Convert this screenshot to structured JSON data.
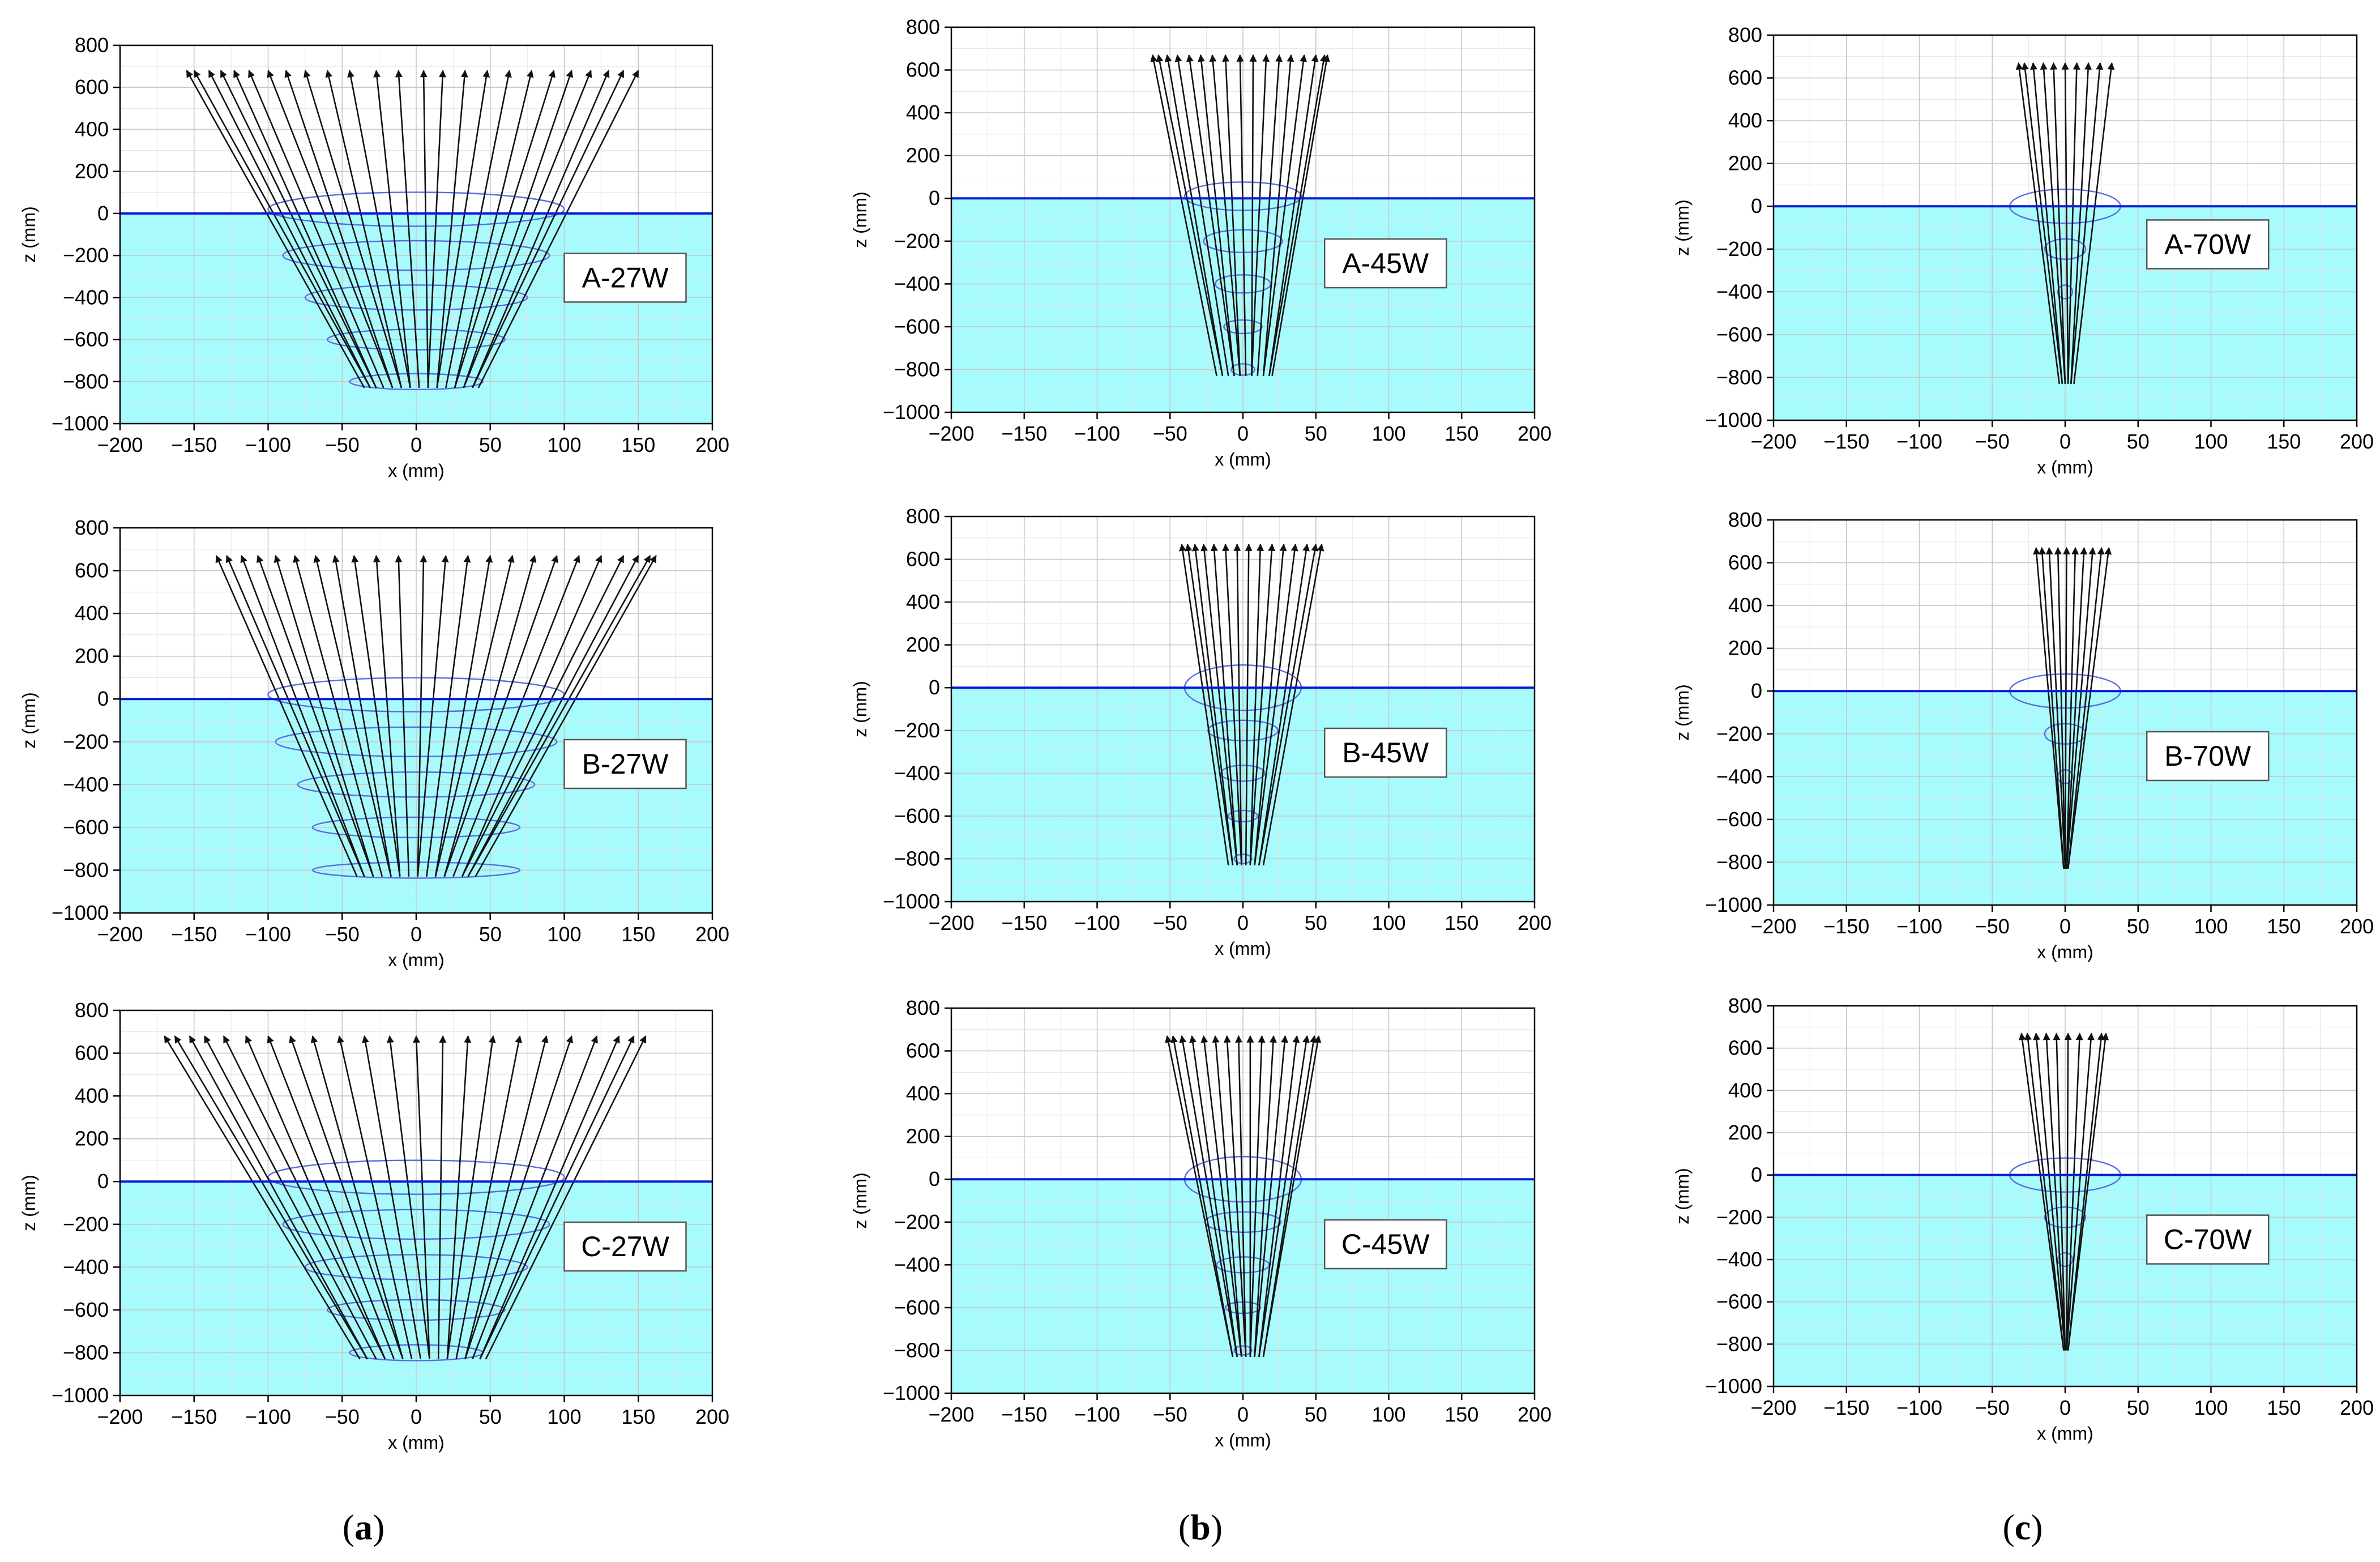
{
  "figure": {
    "captions": [
      {
        "letter": "a"
      },
      {
        "letter": "b"
      },
      {
        "letter": "c"
      }
    ]
  },
  "colors": {
    "water": "#a8fbfc",
    "surface_line": "#0b1ad6",
    "ellipse": "#5b6be0",
    "ray": "#111111",
    "grid": "#c8c8c8",
    "grid_minor": "#e4e4e4"
  },
  "chart_data": [
    {
      "type": "line",
      "label": "A-27W",
      "xlabel": "x (mm)",
      "ylabel": "z (mm)",
      "xlim": [
        -200,
        200
      ],
      "ylim": [
        -1000,
        800
      ],
      "xticks": [
        "−200",
        "−150",
        "−100",
        "−50",
        "0",
        "50",
        "100",
        "150",
        "200"
      ],
      "yticks": [
        "−1000",
        "−800",
        "−600",
        "−400",
        "−200",
        "0",
        "200",
        "400",
        "600",
        "800"
      ],
      "surface_z": 0,
      "top_z": 680,
      "bottom_z": -830,
      "top_x": [
        -155,
        -150,
        -140,
        -132,
        -123,
        -113,
        -100,
        -88,
        -75,
        -60,
        -45,
        -27,
        -12,
        5,
        18,
        33,
        48,
        63,
        78,
        93,
        105,
        118,
        130,
        140,
        150
      ],
      "bottom_x": [
        -35,
        -31,
        -27,
        -22,
        -16,
        -10,
        -4,
        2,
        8,
        14,
        20,
        26,
        32,
        38,
        42
      ],
      "ellipses": [
        {
          "z": 20,
          "w": 100,
          "h": 30
        },
        {
          "z": -200,
          "w": 90,
          "h": 26
        },
        {
          "z": -400,
          "w": 75,
          "h": 22
        },
        {
          "z": -600,
          "w": 60,
          "h": 18
        },
        {
          "z": -800,
          "w": 45,
          "h": 14
        }
      ]
    },
    {
      "type": "line",
      "label": "A-45W",
      "xlabel": "x (mm)",
      "ylabel": "z (mm)",
      "xlim": [
        -200,
        200
      ],
      "ylim": [
        -1000,
        800
      ],
      "xticks": [
        "−200",
        "−150",
        "−100",
        "−50",
        "0",
        "50",
        "100",
        "150",
        "200"
      ],
      "yticks": [
        "−1000",
        "−800",
        "−600",
        "−400",
        "−200",
        "0",
        "200",
        "400",
        "600",
        "800"
      ],
      "surface_z": 0,
      "top_z": 670,
      "bottom_z": -830,
      "top_x": [
        -62,
        -58,
        -52,
        -45,
        -37,
        -29,
        -21,
        -12,
        -2,
        7,
        16,
        25,
        33,
        42,
        50,
        56,
        58
      ],
      "bottom_x": [
        -18,
        -14,
        -10,
        -6,
        -2,
        2,
        6,
        10,
        14,
        18,
        20
      ],
      "ellipses": [
        {
          "z": 10,
          "w": 40,
          "h": 25
        },
        {
          "z": -200,
          "w": 27,
          "h": 20
        },
        {
          "z": -400,
          "w": 19,
          "h": 16
        },
        {
          "z": -600,
          "w": 13,
          "h": 12
        },
        {
          "z": -800,
          "w": 8,
          "h": 10
        }
      ]
    },
    {
      "type": "line",
      "label": "A-70W",
      "xlabel": "x (mm)",
      "ylabel": "z (mm)",
      "xlim": [
        -200,
        200
      ],
      "ylim": [
        -1000,
        800
      ],
      "xticks": [
        "−200",
        "−150",
        "−100",
        "−50",
        "0",
        "50",
        "100",
        "150",
        "200"
      ],
      "yticks": [
        "−1000",
        "−800",
        "−600",
        "−400",
        "−200",
        "0",
        "200",
        "400",
        "600",
        "800"
      ],
      "surface_z": 0,
      "top_z": 670,
      "bottom_z": -830,
      "top_x": [
        -32,
        -28,
        -22,
        -15,
        -8,
        0,
        8,
        16,
        24,
        32
      ],
      "bottom_x": [
        -4,
        -2,
        0,
        2,
        4,
        6
      ],
      "ellipses": [
        {
          "z": 0,
          "w": 38,
          "h": 30
        },
        {
          "z": -200,
          "w": 14,
          "h": 18
        },
        {
          "z": -400,
          "w": 5,
          "h": 12
        }
      ]
    },
    {
      "type": "line",
      "label": "B-27W",
      "xlabel": "x (mm)",
      "ylabel": "z (mm)",
      "xlim": [
        -200,
        200
      ],
      "ylim": [
        -1000,
        800
      ],
      "xticks": [
        "−200",
        "−150",
        "−100",
        "−50",
        "0",
        "50",
        "100",
        "150",
        "200"
      ],
      "yticks": [
        "−1000",
        "−800",
        "−600",
        "−400",
        "−200",
        "0",
        "200",
        "400",
        "600",
        "800"
      ],
      "surface_z": 0,
      "top_z": 670,
      "bottom_z": -830,
      "top_x": [
        -135,
        -128,
        -118,
        -107,
        -95,
        -82,
        -68,
        -55,
        -42,
        -27,
        -12,
        5,
        20,
        35,
        50,
        65,
        80,
        95,
        110,
        125,
        140,
        150,
        158,
        162
      ],
      "bottom_x": [
        -40,
        -35,
        -29,
        -23,
        -17,
        -11,
        -5,
        1,
        7,
        13,
        19,
        25,
        31,
        35,
        40
      ],
      "ellipses": [
        {
          "z": 20,
          "w": 100,
          "h": 30
        },
        {
          "z": -200,
          "w": 95,
          "h": 26
        },
        {
          "z": -400,
          "w": 80,
          "h": 22
        },
        {
          "z": -600,
          "w": 70,
          "h": 18
        },
        {
          "z": -800,
          "w": 70,
          "h": 14
        }
      ]
    },
    {
      "type": "line",
      "label": "B-45W",
      "xlabel": "x (mm)",
      "ylabel": "z (mm)",
      "xlim": [
        -200,
        200
      ],
      "ylim": [
        -1000,
        800
      ],
      "xticks": [
        "−200",
        "−150",
        "−100",
        "−50",
        "0",
        "50",
        "100",
        "150",
        "200"
      ],
      "yticks": [
        "−1000",
        "−800",
        "−600",
        "−400",
        "−200",
        "0",
        "200",
        "400",
        "600",
        "800"
      ],
      "surface_z": 0,
      "top_z": 670,
      "bottom_z": -830,
      "top_x": [
        -42,
        -38,
        -33,
        -27,
        -20,
        -12,
        -4,
        4,
        12,
        20,
        28,
        36,
        44,
        50,
        54
      ],
      "bottom_x": [
        -10,
        -7,
        -4,
        -1,
        2,
        5,
        8,
        11,
        14
      ],
      "ellipses": [
        {
          "z": 0,
          "w": 40,
          "h": 40
        },
        {
          "z": -200,
          "w": 24,
          "h": 18
        },
        {
          "z": -400,
          "w": 15,
          "h": 14
        },
        {
          "z": -600,
          "w": 10,
          "h": 10
        },
        {
          "z": -800,
          "w": 6,
          "h": 8
        }
      ]
    },
    {
      "type": "line",
      "label": "B-70W",
      "xlabel": "x (mm)",
      "ylabel": "z (mm)",
      "xlim": [
        -200,
        200
      ],
      "ylim": [
        -1000,
        800
      ],
      "xticks": [
        "−200",
        "−150",
        "−100",
        "−50",
        "0",
        "50",
        "100",
        "150",
        "200"
      ],
      "yticks": [
        "−1000",
        "−800",
        "−600",
        "−400",
        "−200",
        "0",
        "200",
        "400",
        "600",
        "800"
      ],
      "surface_z": 0,
      "top_z": 670,
      "bottom_z": -830,
      "top_x": [
        -20,
        -16,
        -11,
        -5,
        1,
        7,
        13,
        19,
        25,
        30
      ],
      "bottom_x": [
        -1,
        0,
        1,
        2
      ],
      "ellipses": [
        {
          "z": 0,
          "w": 38,
          "h": 30
        },
        {
          "z": -200,
          "w": 14,
          "h": 18
        },
        {
          "z": -400,
          "w": 5,
          "h": 12
        }
      ]
    },
    {
      "type": "line",
      "label": "C-27W",
      "xlabel": "x (mm)",
      "ylabel": "z (mm)",
      "xlim": [
        -200,
        200
      ],
      "ylim": [
        -1000,
        800
      ],
      "xticks": [
        "−200",
        "−150",
        "−100",
        "−50",
        "0",
        "50",
        "100",
        "150",
        "200"
      ],
      "yticks": [
        "−1000",
        "−800",
        "−600",
        "−400",
        "−200",
        "0",
        "200",
        "400",
        "600",
        "800"
      ],
      "surface_z": 0,
      "top_z": 680,
      "bottom_z": -830,
      "top_x": [
        -170,
        -163,
        -153,
        -143,
        -130,
        -115,
        -100,
        -85,
        -70,
        -52,
        -35,
        -18,
        0,
        18,
        35,
        52,
        70,
        88,
        105,
        122,
        137,
        147,
        155
      ],
      "bottom_x": [
        -38,
        -33,
        -27,
        -21,
        -15,
        -9,
        -3,
        3,
        9,
        15,
        21,
        27,
        33,
        38,
        43,
        47
      ],
      "ellipses": [
        {
          "z": 20,
          "w": 100,
          "h": 30
        },
        {
          "z": -200,
          "w": 90,
          "h": 26
        },
        {
          "z": -400,
          "w": 75,
          "h": 22
        },
        {
          "z": -600,
          "w": 60,
          "h": 18
        },
        {
          "z": -800,
          "w": 45,
          "h": 14
        }
      ]
    },
    {
      "type": "line",
      "label": "C-45W",
      "xlabel": "x (mm)",
      "ylabel": "z (mm)",
      "xlim": [
        -200,
        200
      ],
      "ylim": [
        -1000,
        800
      ],
      "xticks": [
        "−200",
        "−150",
        "−100",
        "−50",
        "0",
        "50",
        "100",
        "150",
        "200"
      ],
      "yticks": [
        "−1000",
        "−800",
        "−600",
        "−400",
        "−200",
        "0",
        "200",
        "400",
        "600",
        "800"
      ],
      "surface_z": 0,
      "top_z": 670,
      "bottom_z": -830,
      "top_x": [
        -52,
        -48,
        -42,
        -35,
        -27,
        -19,
        -11,
        -3,
        5,
        13,
        21,
        29,
        37,
        44,
        49,
        52
      ],
      "bottom_x": [
        -7,
        -4,
        -1,
        2,
        5,
        8,
        11,
        14
      ],
      "ellipses": [
        {
          "z": 0,
          "w": 40,
          "h": 40
        },
        {
          "z": -200,
          "w": 26,
          "h": 18
        },
        {
          "z": -400,
          "w": 18,
          "h": 14
        },
        {
          "z": -600,
          "w": 12,
          "h": 10
        },
        {
          "z": -800,
          "w": 6,
          "h": 8
        }
      ]
    },
    {
      "type": "line",
      "label": "C-70W",
      "xlabel": "x (mm)",
      "ylabel": "z (mm)",
      "xlim": [
        -200,
        200
      ],
      "ylim": [
        -1000,
        800
      ],
      "xticks": [
        "−200",
        "−150",
        "−100",
        "−50",
        "0",
        "50",
        "100",
        "150",
        "200"
      ],
      "yticks": [
        "−1000",
        "−800",
        "−600",
        "−400",
        "−200",
        "0",
        "200",
        "400",
        "600",
        "800"
      ],
      "surface_z": 0,
      "top_z": 670,
      "bottom_z": -830,
      "top_x": [
        -30,
        -26,
        -20,
        -13,
        -6,
        2,
        10,
        18,
        25,
        28
      ],
      "bottom_x": [
        -1,
        0,
        1,
        2
      ],
      "ellipses": [
        {
          "z": 0,
          "w": 38,
          "h": 30
        },
        {
          "z": -200,
          "w": 14,
          "h": 18
        },
        {
          "z": -400,
          "w": 5,
          "h": 12
        }
      ]
    }
  ]
}
